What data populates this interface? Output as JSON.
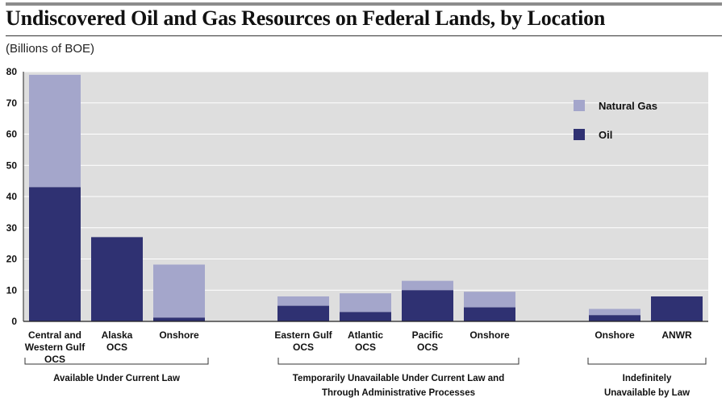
{
  "title": "Undiscovered Oil and Gas Resources on Federal Lands, by Location",
  "subtitle": "(Billions of BOE)",
  "colors": {
    "oil": "#2f3172",
    "gas": "#a4a6cb",
    "plot_bg": "#dedede",
    "grid": "#ffffff"
  },
  "chart_data": {
    "type": "bar",
    "stacked": true,
    "ylim": [
      0,
      80
    ],
    "yticks": [
      0,
      10,
      20,
      30,
      40,
      50,
      60,
      70,
      80
    ],
    "grid": true,
    "legend_position": "top-right",
    "categories": [
      [
        "Central and",
        "Western Gulf",
        "OCS"
      ],
      [
        "Alaska",
        "OCS"
      ],
      [
        "Onshore"
      ],
      [
        "Eastern Gulf",
        "OCS"
      ],
      [
        "Atlantic",
        "OCS"
      ],
      [
        "Pacific",
        "OCS"
      ],
      [
        "Onshore"
      ],
      [
        "Onshore"
      ],
      [
        "ANWR"
      ]
    ],
    "series": [
      {
        "name": "Oil",
        "values": [
          43,
          27,
          1.2,
          5,
          3,
          10,
          4.5,
          2,
          8
        ]
      },
      {
        "name": "Natural Gas",
        "values": [
          36,
          0,
          17,
          3,
          6,
          3,
          5,
          2,
          0
        ]
      }
    ],
    "legend": [
      "Natural Gas",
      "Oil"
    ],
    "groups": [
      {
        "label": [
          "Available Under Current Law"
        ],
        "members": [
          0,
          1,
          2
        ]
      },
      {
        "label": [
          "Temporarily Unavailable Under Current Law and",
          "Through Administrative Processes"
        ],
        "members": [
          3,
          4,
          5,
          6
        ]
      },
      {
        "label": [
          "Indefinitely",
          "Unavailable by Law"
        ],
        "members": [
          7,
          8
        ]
      }
    ]
  }
}
